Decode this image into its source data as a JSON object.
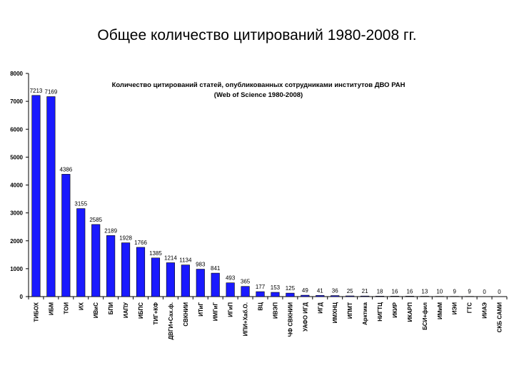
{
  "slide": {
    "title": "Общее количество цитирований 1980-2008 гг."
  },
  "chart_data": {
    "type": "bar",
    "title_lines": [
      "Количество цитирований статей, опубликованных сотрудниками институтов ДВО РАН",
      "(Web of Science 1980-2008)"
    ],
    "xlabel": "",
    "ylabel": "",
    "ylim": [
      0,
      8000
    ],
    "yticks": [
      0,
      1000,
      2000,
      3000,
      4000,
      5000,
      6000,
      7000,
      8000
    ],
    "grid": false,
    "legend": "none",
    "bar_color": "#1a1aff",
    "categories": [
      "ТИБОХ",
      "ИБМ",
      "ТОИ",
      "ИХ",
      "ИВиС",
      "БПИ",
      "ИАПУ",
      "ИБПС",
      "ТИГ+КФ",
      "ДВГИ+Сах.ф.",
      "СВКНИИ",
      "ИТиГ",
      "ИМГиГ",
      "ИГиП",
      "ИПИ+Хаб.О.",
      "ВЦ",
      "ИВЭП",
      "ЧФ СВКНИИ",
      "УАФО ИГД",
      "ИГД",
      "ИМХНЦ",
      "ИПМТ",
      "Арктика",
      "НИГТЦ",
      "ИКИР",
      "ИКАРП",
      "БСИ+фил",
      "ИМиМ",
      "ИЭИ",
      "ГТС",
      "ИИАЭ",
      "СКБ САМИ"
    ],
    "values": [
      7213,
      7169,
      4386,
      3155,
      2585,
      2189,
      1928,
      1766,
      1385,
      1214,
      1134,
      983,
      841,
      493,
      365,
      177,
      153,
      125,
      49,
      41,
      36,
      25,
      21,
      18,
      16,
      16,
      13,
      10,
      9,
      9,
      0,
      0
    ],
    "labels": [
      "7213",
      "7169",
      "4386",
      "3155",
      "2585",
      "2189",
      "1928",
      "1766",
      "1385",
      "1214",
      "1134",
      "983",
      "841",
      "493",
      "365",
      "177",
      "153",
      "125",
      "49",
      "41",
      "36",
      "25",
      "21",
      "18",
      "16",
      "16",
      "13",
      "10",
      "9",
      "9",
      "0",
      "0"
    ]
  }
}
